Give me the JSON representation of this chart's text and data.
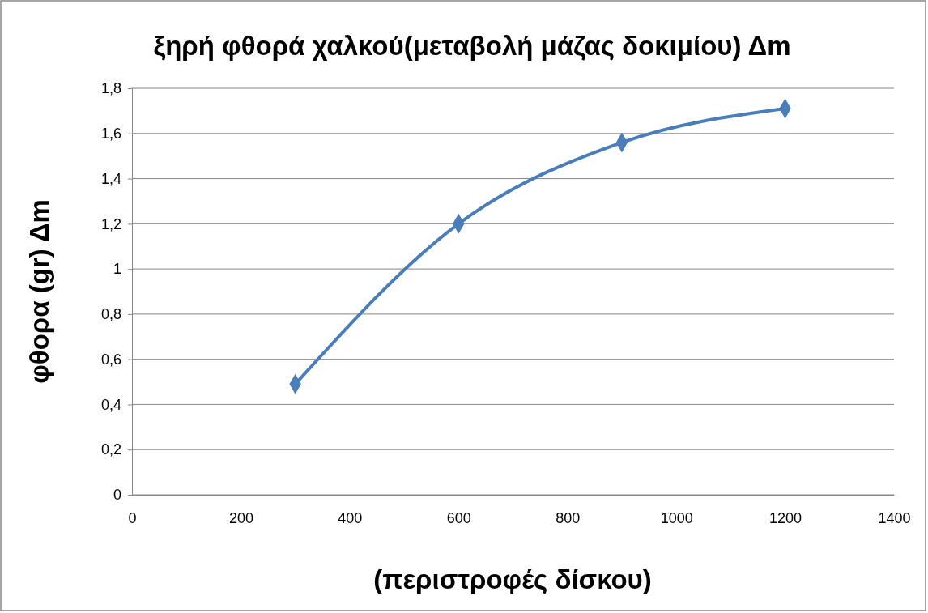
{
  "chart_data": {
    "type": "line",
    "title": "ξηρή φθορά χαλκού(μεταβολή μάζας δοκιμίου) Δm",
    "xlabel": "(περιστροφές δίσκου)",
    "ylabel": "φθορα (gr) Δm",
    "x": [
      300,
      600,
      900,
      1200
    ],
    "series": [
      {
        "color": "#4a7ebb",
        "values": [
          0.49,
          1.2,
          1.56,
          1.71
        ]
      }
    ],
    "xlim": [
      0,
      1400
    ],
    "xticks": [
      0,
      200,
      400,
      600,
      800,
      1000,
      1200,
      1400
    ],
    "ylim": [
      0,
      1.8
    ],
    "yticks": [
      0,
      {
        "value": 0.2,
        "label": "0,2"
      },
      {
        "value": 0.4,
        "label": "0,4"
      },
      {
        "value": 0.6,
        "label": "0,6"
      },
      {
        "value": 0.8,
        "label": "0,8"
      },
      1,
      {
        "value": 1.2,
        "label": "1,2"
      },
      {
        "value": 1.4,
        "label": "1,4"
      },
      {
        "value": 1.6,
        "label": "1,6"
      },
      {
        "value": 1.8,
        "label": "1,8"
      }
    ],
    "grid": "y",
    "marker": "diamond",
    "line_style": "solid"
  }
}
